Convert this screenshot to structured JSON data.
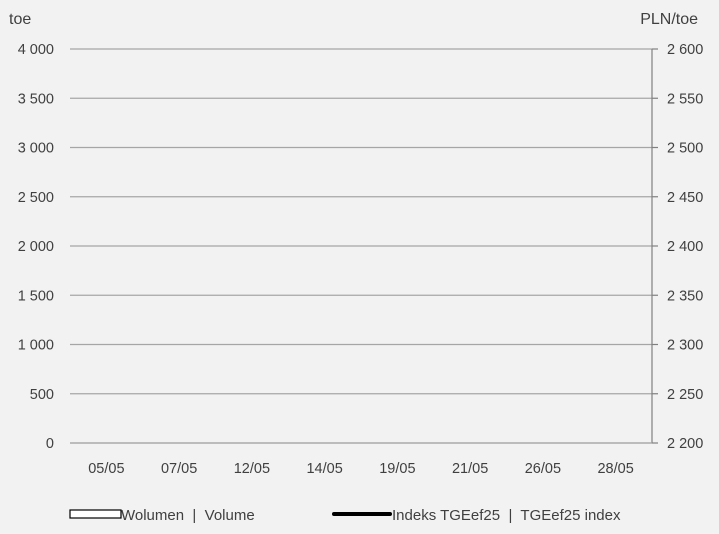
{
  "chart_data": {
    "type": "bar",
    "categories": [
      "05/05",
      "07/05",
      "12/05",
      "14/05",
      "19/05",
      "21/05",
      "26/05",
      "28/05"
    ],
    "series": [
      {
        "name": "Wolumen  |  Volume",
        "type": "bar",
        "axis": "left",
        "values": [
          0,
          0,
          0,
          0,
          0,
          0,
          0,
          0
        ]
      },
      {
        "name": "Indeks TGEef25  |  TGEef25 index",
        "type": "line",
        "axis": "right",
        "values": [
          null,
          null,
          null,
          null,
          null,
          null,
          null,
          null
        ]
      }
    ],
    "ylabel": "toe",
    "y2label": "PLN/toe",
    "ylim": [
      0,
      4000
    ],
    "y2lim": [
      2200,
      2600
    ],
    "yticks": [
      "0",
      "500",
      "1 000",
      "1 500",
      "2 000",
      "2 500",
      "3 000",
      "3 500",
      "4 000"
    ],
    "y2ticks": [
      "2 200",
      "2 250",
      "2 300",
      "2 350",
      "2 400",
      "2 450",
      "2 500",
      "2 550",
      "2 600"
    ],
    "grid": true,
    "legend_position": "bottom",
    "colors": {
      "grid": "#a6a6a6",
      "axis": "#808080",
      "line": "#000000",
      "text": "#404040",
      "background": "#f2f2f2"
    }
  }
}
